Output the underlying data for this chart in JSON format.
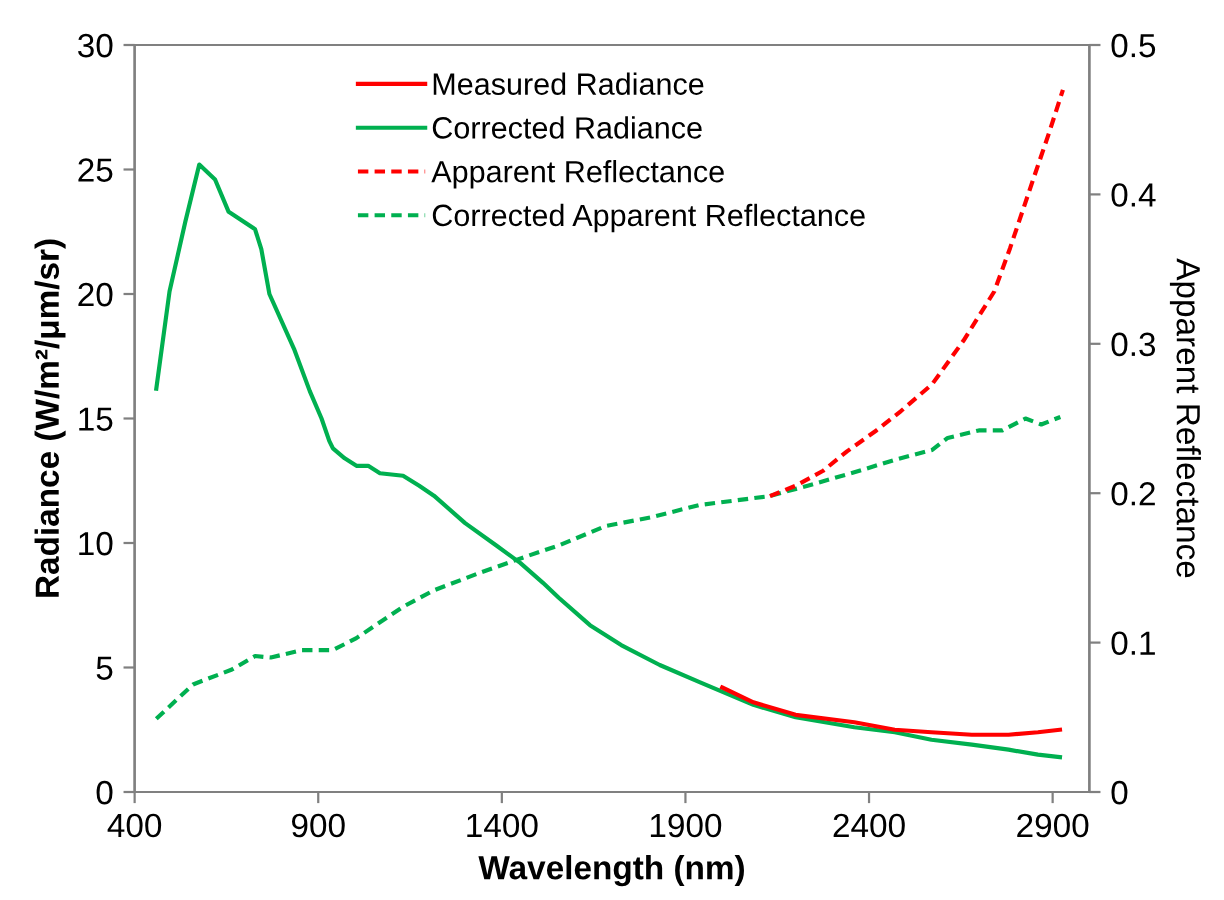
{
  "chart_data": {
    "type": "line",
    "xlabel": "Wavelength (nm)",
    "ylabel": "Radiance (W/m²/μm/sr)",
    "y2label": "Apparent Reflectance",
    "xlim": [
      400,
      3000
    ],
    "xticks": [
      400,
      900,
      1400,
      1900,
      2400,
      2900
    ],
    "ylim": [
      0,
      30
    ],
    "yticks": [
      0,
      5,
      10,
      15,
      20,
      25,
      30
    ],
    "y2lim": [
      0,
      0.5
    ],
    "y2ticks": [
      0,
      0.1,
      0.2,
      0.3,
      0.4,
      0.5
    ],
    "grid": false,
    "legend": "top",
    "marker": "none",
    "series": [
      {
        "name": "Measured Radiance",
        "color": "#ff0000",
        "line_style": "solid",
        "x": [
          2000,
          2085,
          2200,
          2360,
          2470,
          2570,
          2680,
          2780,
          2860,
          2920
        ],
        "values": [
          4.2,
          3.6,
          3.1,
          2.8,
          2.5,
          2.4,
          2.3,
          2.3,
          2.4,
          2.5
        ]
      },
      {
        "name": "Corrected Radiance",
        "color": "#00b050",
        "line_style": "solid",
        "x": [
          459,
          495,
          538,
          576,
          619,
          656,
          728,
          745,
          767,
          834,
          877,
          909,
          930,
          940,
          972,
          1004,
          1036,
          1068,
          1131,
          1175,
          1215,
          1300,
          1385,
          1450,
          1512,
          1555,
          1640,
          1725,
          1830,
          1940,
          2085,
          2200,
          2360,
          2470,
          2570,
          2680,
          2780,
          2860,
          2920
        ],
        "values": [
          16.2,
          20.1,
          22.9,
          25.2,
          24.6,
          23.3,
          22.6,
          21.8,
          20.0,
          17.8,
          16.1,
          15.0,
          14.1,
          13.8,
          13.4,
          13.1,
          13.1,
          12.8,
          12.7,
          12.3,
          11.9,
          10.8,
          9.9,
          9.2,
          8.4,
          7.8,
          6.7,
          5.9,
          5.1,
          4.4,
          3.5,
          3.0,
          2.6,
          2.4,
          2.1,
          1.9,
          1.7,
          1.5,
          1.4
        ]
      },
      {
        "name": "Apparent Reflectance",
        "color": "#ff0000",
        "line_style": "dashed",
        "axis": "y2",
        "x": [
          2130,
          2200,
          2275,
          2340,
          2420,
          2487,
          2572,
          2657,
          2741,
          2784,
          2847,
          2890,
          2928
        ],
        "values": [
          0.198,
          0.205,
          0.215,
          0.228,
          0.242,
          0.255,
          0.273,
          0.302,
          0.335,
          0.364,
          0.41,
          0.441,
          0.47
        ]
      },
      {
        "name": "Corrected Apparent Reflectance",
        "color": "#00b050",
        "line_style": "dashed",
        "axis": "y2",
        "x": [
          459,
          559,
          665,
          728,
          771,
          855,
          940,
          1004,
          1131,
          1215,
          1343,
          1470,
          1555,
          1682,
          1809,
          1936,
          2127,
          2233,
          2360,
          2466,
          2572,
          2614,
          2699,
          2763,
          2826,
          2869,
          2921
        ],
        "values": [
          0.049,
          0.072,
          0.082,
          0.091,
          0.09,
          0.095,
          0.095,
          0.103,
          0.124,
          0.135,
          0.147,
          0.158,
          0.165,
          0.178,
          0.184,
          0.192,
          0.198,
          0.205,
          0.214,
          0.222,
          0.229,
          0.237,
          0.242,
          0.242,
          0.25,
          0.246,
          0.251
        ]
      }
    ]
  }
}
